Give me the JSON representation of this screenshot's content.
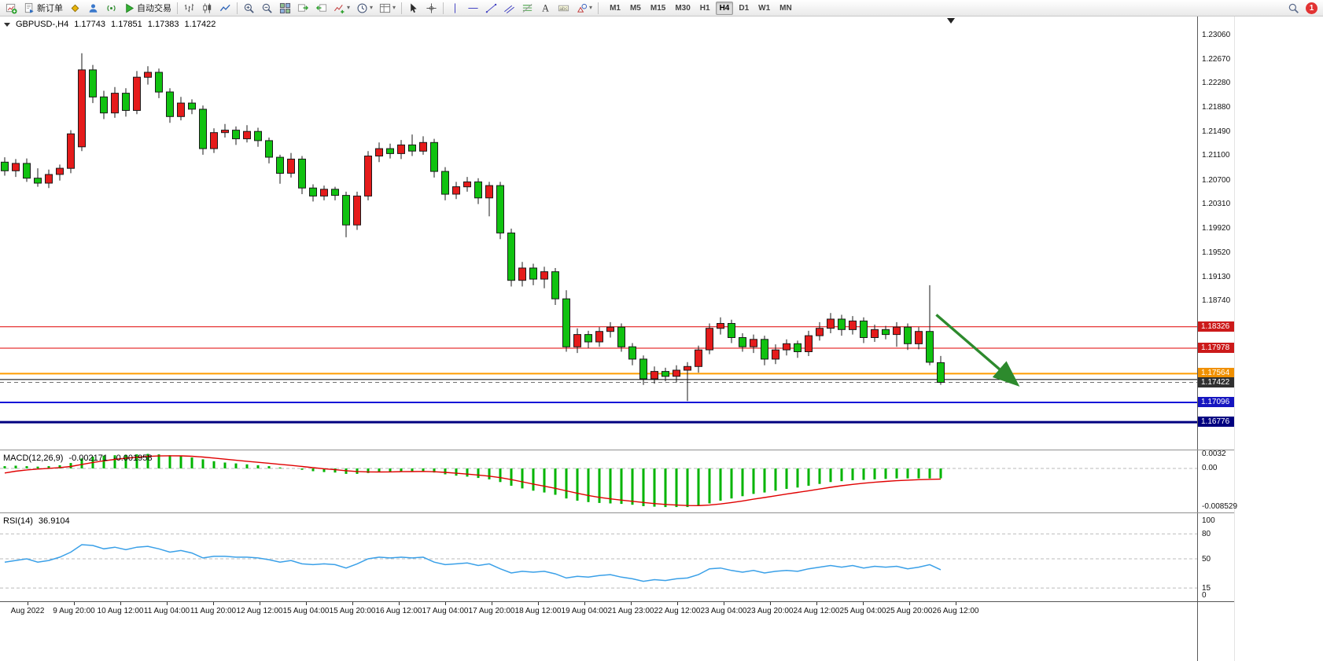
{
  "toolbar": {
    "buttons": [
      {
        "name": "new-chart",
        "icon": "chart-add-icon"
      },
      {
        "name": "new-order",
        "icon": "order-icon",
        "label": "新订单"
      },
      {
        "name": "metaeditor",
        "icon": "diamond-icon"
      },
      {
        "name": "community",
        "icon": "user-icon"
      },
      {
        "name": "market",
        "icon": "broadcast-icon"
      },
      {
        "name": "auto-trading",
        "icon": "play-icon",
        "label": "自动交易"
      },
      {
        "type": "sep"
      },
      {
        "name": "bar-chart-mode",
        "icon": "bars-icon"
      },
      {
        "name": "candlestick-mode",
        "icon": "candles-icon"
      },
      {
        "name": "line-chart-mode",
        "icon": "line-chart-icon"
      },
      {
        "type": "sep"
      },
      {
        "name": "zoom-in",
        "icon": "zoom-in-icon"
      },
      {
        "name": "zoom-out",
        "icon": "zoom-out-icon"
      },
      {
        "name": "tile-windows",
        "icon": "tile-icon"
      },
      {
        "name": "auto-scroll",
        "icon": "scroll-end-icon"
      },
      {
        "name": "chart-shift",
        "icon": "shift-icon"
      },
      {
        "name": "indicators",
        "icon": "indicator-icon",
        "dropdown": true
      },
      {
        "name": "periods",
        "icon": "clock-icon",
        "dropdown": true
      },
      {
        "name": "templates",
        "icon": "template-icon",
        "dropdown": true
      },
      {
        "type": "sep"
      },
      {
        "name": "cursor",
        "icon": "cursor-icon"
      },
      {
        "name": "crosshair",
        "icon": "crosshair-icon"
      },
      {
        "type": "sep"
      },
      {
        "name": "vertical-line",
        "icon": "vline-icon"
      },
      {
        "name": "horizontal-line",
        "icon": "hline-icon"
      },
      {
        "name": "trendline",
        "icon": "trendline-icon"
      },
      {
        "name": "equidistant-channel",
        "icon": "channel-icon"
      },
      {
        "name": "fibonacci",
        "icon": "fibo-icon"
      },
      {
        "name": "text",
        "icon": "text-icon"
      },
      {
        "name": "text-label",
        "icon": "label-icon"
      },
      {
        "name": "arrows",
        "icon": "shapes-icon",
        "dropdown": true
      },
      {
        "type": "sep"
      }
    ],
    "timeframes": [
      "M1",
      "M5",
      "M15",
      "M30",
      "H1",
      "H4",
      "D1",
      "W1",
      "MN"
    ],
    "active_timeframe": "H4",
    "notification_count": "1"
  },
  "quote": {
    "symbol": "GBPUSD-,H4",
    "open": "1.17743",
    "high": "1.17851",
    "low": "1.17383",
    "close": "1.17422"
  },
  "chart_data": {
    "type": "candlestick",
    "title": "GBPUSD- H4",
    "price_axis_ticks": [
      "1.23060",
      "1.22670",
      "1.22280",
      "1.21880",
      "1.21490",
      "1.21100",
      "1.20700",
      "1.20310",
      "1.19920",
      "1.19520",
      "1.19130",
      "1.18740"
    ],
    "time_labels": [
      "Aug 2022",
      "9 Aug 20:00",
      "10 Aug 12:00",
      "11 Aug 04:00",
      "11 Aug 20:00",
      "12 Aug 12:00",
      "15 Aug 04:00",
      "15 Aug 20:00",
      "16 Aug 12:00",
      "17 Aug 04:00",
      "17 Aug 20:00",
      "18 Aug 12:00",
      "19 Aug 04:00",
      "21 Aug 23:00",
      "22 Aug 12:00",
      "23 Aug 04:00",
      "23 Aug 20:00",
      "24 Aug 12:00",
      "25 Aug 04:00",
      "25 Aug 20:00",
      "26 Aug 12:00"
    ],
    "colors": {
      "bull": "#e51b1b",
      "bear": "#10c210",
      "wick": "#1a1a1a",
      "macd_hist": "#00b400",
      "macd_signal": "#e00000",
      "rsi_line": "#3aa0e8"
    },
    "candles": [
      [
        1.21,
        1.2108,
        1.2078,
        1.2086
      ],
      [
        1.2086,
        1.2105,
        1.2076,
        1.2098
      ],
      [
        1.2098,
        1.2106,
        1.2068,
        1.2074
      ],
      [
        1.2074,
        1.209,
        1.206,
        1.2066
      ],
      [
        1.2066,
        1.2088,
        1.2058,
        1.208
      ],
      [
        1.208,
        1.2096,
        1.207,
        1.209
      ],
      [
        1.209,
        1.2152,
        1.2082,
        1.2146
      ],
      [
        1.2125,
        1.2277,
        1.2118,
        1.225
      ],
      [
        1.225,
        1.2258,
        1.2196,
        1.2206
      ],
      [
        1.2206,
        1.2216,
        1.217,
        1.218
      ],
      [
        1.218,
        1.2222,
        1.2172,
        1.2212
      ],
      [
        1.2212,
        1.222,
        1.2174,
        1.2184
      ],
      [
        1.2184,
        1.2248,
        1.2178,
        1.2238
      ],
      [
        1.2238,
        1.2256,
        1.2226,
        1.2246
      ],
      [
        1.2246,
        1.2252,
        1.2204,
        1.2214
      ],
      [
        1.2214,
        1.222,
        1.2164,
        1.2174
      ],
      [
        1.2174,
        1.2206,
        1.2168,
        1.2196
      ],
      [
        1.2196,
        1.2202,
        1.2178,
        1.2186
      ],
      [
        1.2186,
        1.2192,
        1.2112,
        1.2122
      ],
      [
        1.2122,
        1.2155,
        1.2115,
        1.2148
      ],
      [
        1.2148,
        1.2162,
        1.214,
        1.2152
      ],
      [
        1.2152,
        1.2158,
        1.2128,
        1.2138
      ],
      [
        1.2138,
        1.216,
        1.2132,
        1.215
      ],
      [
        1.215,
        1.2156,
        1.2125,
        1.2135
      ],
      [
        1.2135,
        1.214,
        1.2098,
        1.2108
      ],
      [
        1.2108,
        1.2112,
        1.2065,
        1.2082
      ],
      [
        1.2082,
        1.2115,
        1.2075,
        1.2105
      ],
      [
        1.2105,
        1.211,
        1.2048,
        1.2058
      ],
      [
        1.2058,
        1.2064,
        1.2036,
        1.2045
      ],
      [
        1.2045,
        1.2062,
        1.2038,
        1.2056
      ],
      [
        1.2056,
        1.206,
        1.2038,
        1.2046
      ],
      [
        1.2046,
        1.2052,
        1.1978,
        1.1998
      ],
      [
        1.1998,
        1.2052,
        1.199,
        1.2045
      ],
      [
        1.2045,
        1.2118,
        1.2038,
        1.211
      ],
      [
        1.211,
        1.2132,
        1.21,
        1.2122
      ],
      [
        1.2122,
        1.213,
        1.2106,
        1.2114
      ],
      [
        1.2114,
        1.2136,
        1.2105,
        1.2128
      ],
      [
        1.2128,
        1.2145,
        1.211,
        1.2118
      ],
      [
        1.2118,
        1.2142,
        1.2112,
        1.2132
      ],
      [
        1.2132,
        1.2138,
        1.2075,
        1.2085
      ],
      [
        1.2085,
        1.2092,
        1.2038,
        1.2048
      ],
      [
        1.2048,
        1.2068,
        1.204,
        1.206
      ],
      [
        1.206,
        1.2076,
        1.2052,
        1.2068
      ],
      [
        1.2068,
        1.2074,
        1.2032,
        1.2042
      ],
      [
        1.2042,
        1.2068,
        1.2012,
        1.2062
      ],
      [
        1.2062,
        1.2068,
        1.1975,
        1.1985
      ],
      [
        1.1985,
        1.1992,
        1.1898,
        1.1908
      ],
      [
        1.1908,
        1.1938,
        1.1898,
        1.1928
      ],
      [
        1.1928,
        1.1935,
        1.19,
        1.191
      ],
      [
        1.191,
        1.193,
        1.1895,
        1.1922
      ],
      [
        1.1922,
        1.1928,
        1.1868,
        1.1878
      ],
      [
        1.1878,
        1.1892,
        1.1792,
        1.18
      ],
      [
        1.18,
        1.183,
        1.179,
        1.182
      ],
      [
        1.182,
        1.1826,
        1.1798,
        1.1808
      ],
      [
        1.1808,
        1.1832,
        1.18,
        1.1825
      ],
      [
        1.1825,
        1.184,
        1.1815,
        1.1832
      ],
      [
        1.1832,
        1.1838,
        1.1792,
        1.18
      ],
      [
        1.18,
        1.1806,
        1.177,
        1.178
      ],
      [
        1.178,
        1.1786,
        1.1738,
        1.1748
      ],
      [
        1.1748,
        1.1768,
        1.174,
        1.176
      ],
      [
        1.176,
        1.1766,
        1.1744,
        1.1752
      ],
      [
        1.1752,
        1.177,
        1.1742,
        1.1762
      ],
      [
        1.1762,
        1.1775,
        1.1712,
        1.1768
      ],
      [
        1.1768,
        1.1802,
        1.1758,
        1.1795
      ],
      [
        1.1795,
        1.1838,
        1.1788,
        1.183
      ],
      [
        1.183,
        1.1848,
        1.182,
        1.1838
      ],
      [
        1.1838,
        1.1844,
        1.1806,
        1.1815
      ],
      [
        1.1815,
        1.1822,
        1.1792,
        1.18
      ],
      [
        1.18,
        1.182,
        1.179,
        1.1812
      ],
      [
        1.1812,
        1.1818,
        1.177,
        1.178
      ],
      [
        1.178,
        1.1804,
        1.1772,
        1.1795
      ],
      [
        1.1795,
        1.1812,
        1.1786,
        1.1805
      ],
      [
        1.1805,
        1.181,
        1.1782,
        1.1792
      ],
      [
        1.1792,
        1.1826,
        1.1785,
        1.1818
      ],
      [
        1.1818,
        1.184,
        1.181,
        1.183
      ],
      [
        1.183,
        1.1855,
        1.1822,
        1.1845
      ],
      [
        1.1845,
        1.1852,
        1.1818,
        1.1828
      ],
      [
        1.1828,
        1.185,
        1.182,
        1.1842
      ],
      [
        1.1842,
        1.1848,
        1.1806,
        1.1815
      ],
      [
        1.1815,
        1.1836,
        1.1808,
        1.1828
      ],
      [
        1.1828,
        1.1834,
        1.1812,
        1.182
      ],
      [
        1.182,
        1.184,
        1.18,
        1.1832
      ],
      [
        1.1832,
        1.1838,
        1.1795,
        1.1805
      ],
      [
        1.1805,
        1.1832,
        1.1796,
        1.1825
      ],
      [
        1.1825,
        1.19,
        1.177,
        1.1775
      ],
      [
        1.17743,
        1.17851,
        1.17383,
        1.17422
      ]
    ],
    "levels": [
      {
        "price": 1.18326,
        "label": "1.18326",
        "line_color": "#e00000",
        "box_color": "#cc1a1a",
        "width": 1,
        "dashed": false
      },
      {
        "price": 1.17978,
        "label": "1.17978",
        "line_color": "#e00000",
        "box_color": "#cc1a1a",
        "width": 1,
        "dashed": false
      },
      {
        "price": 1.17564,
        "label": "1.17564",
        "line_color": "#ff9c00",
        "box_color": "#f09000",
        "width": 2,
        "dashed": false
      },
      {
        "price": 1.17468,
        "label": null,
        "line_color": "#000000",
        "box_color": null,
        "width": 1,
        "dashed": false
      },
      {
        "price": 1.17422,
        "label": "1.17422",
        "line_color": "#707070",
        "box_color": "#2f2f2f",
        "width": 1,
        "dashed": true
      },
      {
        "price": 1.17096,
        "label": "1.17096",
        "line_color": "#1515d8",
        "box_color": "#1515c0",
        "width": 2,
        "dashed": false
      },
      {
        "price": 1.16776,
        "label": "1.16776",
        "line_color": "#000080",
        "box_color": "#000080",
        "width": 3,
        "dashed": false
      }
    ],
    "trend_arrow": {
      "color": "#2d8a2d",
      "from": {
        "bar": 84.6,
        "price": 1.1852
      },
      "to": {
        "bar": 91.8,
        "price": 1.1741
      }
    },
    "macd": {
      "name": "MACD(12,26,9)",
      "main_value": "-0.002171",
      "signal_value": "-0.001958",
      "scale_labels": [
        "0.0032",
        "0.00",
        "-0.008529"
      ],
      "values": [
        0.0005,
        0.0006,
        0.0005,
        0.0004,
        0.0005,
        0.0007,
        0.0012,
        0.0022,
        0.0026,
        0.0028,
        0.0029,
        0.003,
        0.0031,
        0.0032,
        0.0031,
        0.0029,
        0.0027,
        0.0024,
        0.002,
        0.0016,
        0.0013,
        0.0011,
        0.0009,
        0.0007,
        0.0005,
        0.0002,
        0,
        -0.0003,
        -0.0006,
        -0.0008,
        -0.0009,
        -0.0012,
        -0.0012,
        -0.001,
        -0.0008,
        -0.0007,
        -0.0006,
        -0.0006,
        -0.0006,
        -0.0009,
        -0.0013,
        -0.0016,
        -0.0018,
        -0.0021,
        -0.0024,
        -0.003,
        -0.0038,
        -0.0044,
        -0.0049,
        -0.0053,
        -0.0058,
        -0.0066,
        -0.0071,
        -0.0074,
        -0.0076,
        -0.0077,
        -0.0078,
        -0.008,
        -0.0083,
        -0.0084,
        -0.0085,
        -0.0085,
        -0.0085,
        -0.0082,
        -0.0077,
        -0.0071,
        -0.0066,
        -0.0061,
        -0.0056,
        -0.0053,
        -0.0049,
        -0.0045,
        -0.0042,
        -0.0038,
        -0.0034,
        -0.003,
        -0.0028,
        -0.0026,
        -0.0025,
        -0.0024,
        -0.0023,
        -0.0022,
        -0.0022,
        -0.0022,
        -0.0022,
        -0.002171
      ]
    },
    "rsi": {
      "name": "RSI(14)",
      "value": "36.9104",
      "scale_labels": [
        "100",
        "80",
        "50",
        "15",
        "0"
      ],
      "levels": [
        80,
        50,
        15
      ],
      "values": [
        46,
        48,
        50,
        46,
        48,
        52,
        58,
        67,
        66,
        62,
        64,
        61,
        64,
        65,
        62,
        58,
        60,
        57,
        51,
        53,
        53,
        52,
        52,
        51,
        49,
        46,
        48,
        44,
        43,
        44,
        43,
        39,
        44,
        50,
        52,
        51,
        52,
        51,
        52,
        46,
        43,
        44,
        45,
        42,
        44,
        38,
        33,
        35,
        34,
        35,
        32,
        27,
        29,
        28,
        30,
        31,
        28,
        26,
        23,
        25,
        24,
        26,
        27,
        31,
        38,
        39,
        36,
        34,
        36,
        33,
        35,
        36,
        35,
        38,
        40,
        42,
        40,
        42,
        39,
        41,
        40,
        41,
        38,
        40,
        43,
        36.91
      ]
    }
  }
}
